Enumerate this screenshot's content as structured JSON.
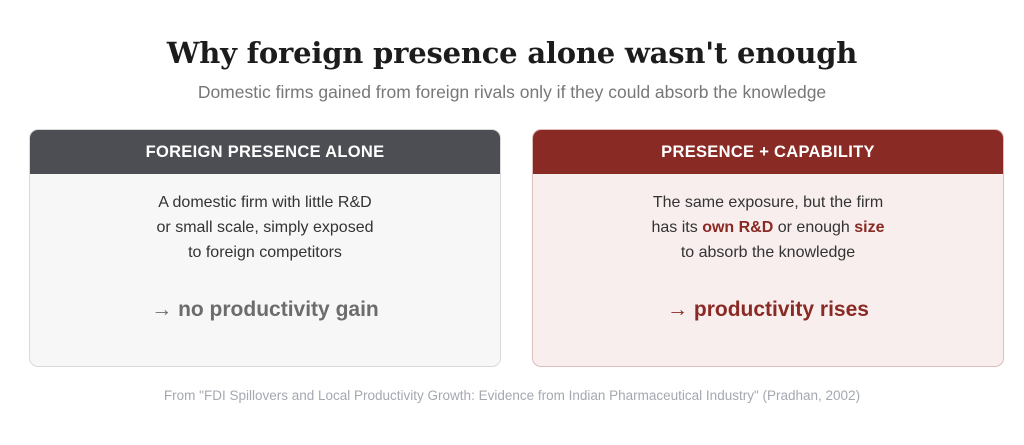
{
  "title": "Why foreign presence alone wasn't enough",
  "subtitle": "Domestic firms gained from foreign rivals only if they could absorb the knowledge",
  "left_card": {
    "header": "FOREIGN PRESENCE ALONE",
    "lines": [
      "A domestic firm with little R&D",
      "or small scale, simply exposed",
      "to foreign competitors"
    ],
    "outcome": "→ no productivity gain"
  },
  "right_card": {
    "header": "PRESENCE + CAPABILITY",
    "line1": "The same exposure, but the firm",
    "line2_pre": "has its ",
    "line2_hl1": "own R&D",
    "line2_mid": " or enough ",
    "line2_hl2": "size",
    "line3": "to absorb the knowledge",
    "outcome": "→ productivity rises"
  },
  "source": "From \"FDI Spillovers and Local Productivity Growth: Evidence from Indian Pharmaceutical Industry\" (Pradhan, 2002)",
  "colors": {
    "left_header": "#4d4e53",
    "right_header": "#8a2a24",
    "accent": "#8a2a24"
  }
}
